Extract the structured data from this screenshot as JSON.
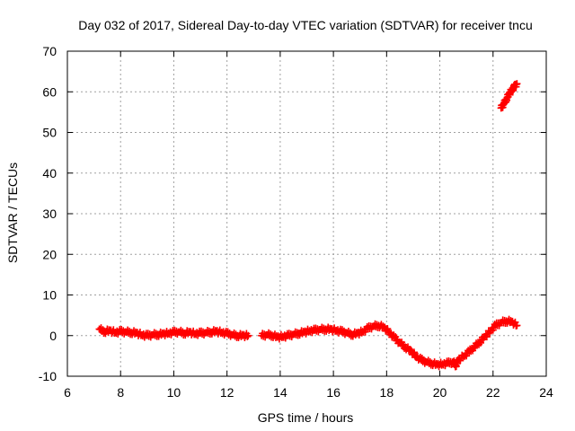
{
  "chart_data": {
    "type": "scatter",
    "title": "Day 032 of 2017, Sidereal Day-to-day VTEC variation (SDTVAR) for receiver tncu",
    "xlabel": "GPS time / hours",
    "ylabel": "SDTVAR / TECUs",
    "xlim": [
      6,
      24
    ],
    "ylim": [
      -10,
      70
    ],
    "x_ticks": [
      6,
      8,
      10,
      12,
      14,
      16,
      18,
      20,
      22,
      24
    ],
    "x_tick_labels": [
      "6",
      "8",
      "10",
      "12",
      "14",
      "16",
      "18",
      "20",
      "22",
      "24"
    ],
    "y_ticks": [
      -10,
      0,
      10,
      20,
      30,
      40,
      50,
      60,
      70
    ],
    "y_tick_labels": [
      "-10",
      "0",
      "10",
      "20",
      "30",
      "40",
      "50",
      "60",
      "70"
    ],
    "grid": true,
    "series": [
      {
        "name": "SDTVAR",
        "color": "#ff0000",
        "marker": "plus",
        "points": [
          [
            7.2,
            1.6
          ],
          [
            7.4,
            1.0
          ],
          [
            7.6,
            1.2
          ],
          [
            7.8,
            0.8
          ],
          [
            8.0,
            1.0
          ],
          [
            8.2,
            0.9
          ],
          [
            8.4,
            0.8
          ],
          [
            8.6,
            0.6
          ],
          [
            8.8,
            0.2
          ],
          [
            9.0,
            0.0
          ],
          [
            9.2,
            0.2
          ],
          [
            9.4,
            0.3
          ],
          [
            9.6,
            0.4
          ],
          [
            9.8,
            0.6
          ],
          [
            10.0,
            0.8
          ],
          [
            10.2,
            0.9
          ],
          [
            10.4,
            0.6
          ],
          [
            10.6,
            0.8
          ],
          [
            10.8,
            0.5
          ],
          [
            11.0,
            0.6
          ],
          [
            11.2,
            0.7
          ],
          [
            11.4,
            0.9
          ],
          [
            11.6,
            1.0
          ],
          [
            11.8,
            0.8
          ],
          [
            12.0,
            0.5
          ],
          [
            12.2,
            0.2
          ],
          [
            12.4,
            0.0
          ],
          [
            12.6,
            0.0
          ],
          [
            12.8,
            0.0
          ],
          [
            13.3,
            0.0
          ],
          [
            13.5,
            0.2
          ],
          [
            13.7,
            0.1
          ],
          [
            13.9,
            -0.4
          ],
          [
            14.1,
            -0.2
          ],
          [
            14.3,
            0.0
          ],
          [
            14.5,
            0.3
          ],
          [
            14.7,
            0.6
          ],
          [
            14.9,
            0.8
          ],
          [
            15.1,
            1.2
          ],
          [
            15.3,
            1.3
          ],
          [
            15.5,
            1.5
          ],
          [
            15.7,
            1.6
          ],
          [
            15.9,
            1.5
          ],
          [
            16.1,
            1.3
          ],
          [
            16.3,
            1.0
          ],
          [
            16.5,
            0.7
          ],
          [
            16.7,
            0.3
          ],
          [
            16.9,
            0.5
          ],
          [
            17.1,
            1.0
          ],
          [
            17.3,
            1.8
          ],
          [
            17.5,
            2.3
          ],
          [
            17.7,
            2.5
          ],
          [
            17.9,
            2.0
          ],
          [
            18.1,
            0.8
          ],
          [
            18.3,
            -0.6
          ],
          [
            18.5,
            -1.8
          ],
          [
            18.7,
            -2.8
          ],
          [
            18.9,
            -3.8
          ],
          [
            19.1,
            -5.0
          ],
          [
            19.3,
            -6.0
          ],
          [
            19.5,
            -6.5
          ],
          [
            19.7,
            -6.8
          ],
          [
            19.9,
            -7.2
          ],
          [
            20.1,
            -7.0
          ],
          [
            20.3,
            -6.8
          ],
          [
            20.5,
            -6.5
          ],
          [
            20.6,
            -7.3
          ],
          [
            20.7,
            -6.0
          ],
          [
            20.9,
            -5.0
          ],
          [
            21.1,
            -4.0
          ],
          [
            21.3,
            -2.8
          ],
          [
            21.5,
            -1.5
          ],
          [
            21.7,
            -0.3
          ],
          [
            21.9,
            1.2
          ],
          [
            22.1,
            2.5
          ],
          [
            22.3,
            3.2
          ],
          [
            22.5,
            3.6
          ],
          [
            22.7,
            3.4
          ],
          [
            22.9,
            2.5
          ],
          [
            22.3,
            56.0
          ],
          [
            22.4,
            57.0
          ],
          [
            22.5,
            58.2
          ],
          [
            22.6,
            59.4
          ],
          [
            22.7,
            60.4
          ],
          [
            22.8,
            61.2
          ],
          [
            22.9,
            62.0
          ]
        ]
      }
    ]
  }
}
